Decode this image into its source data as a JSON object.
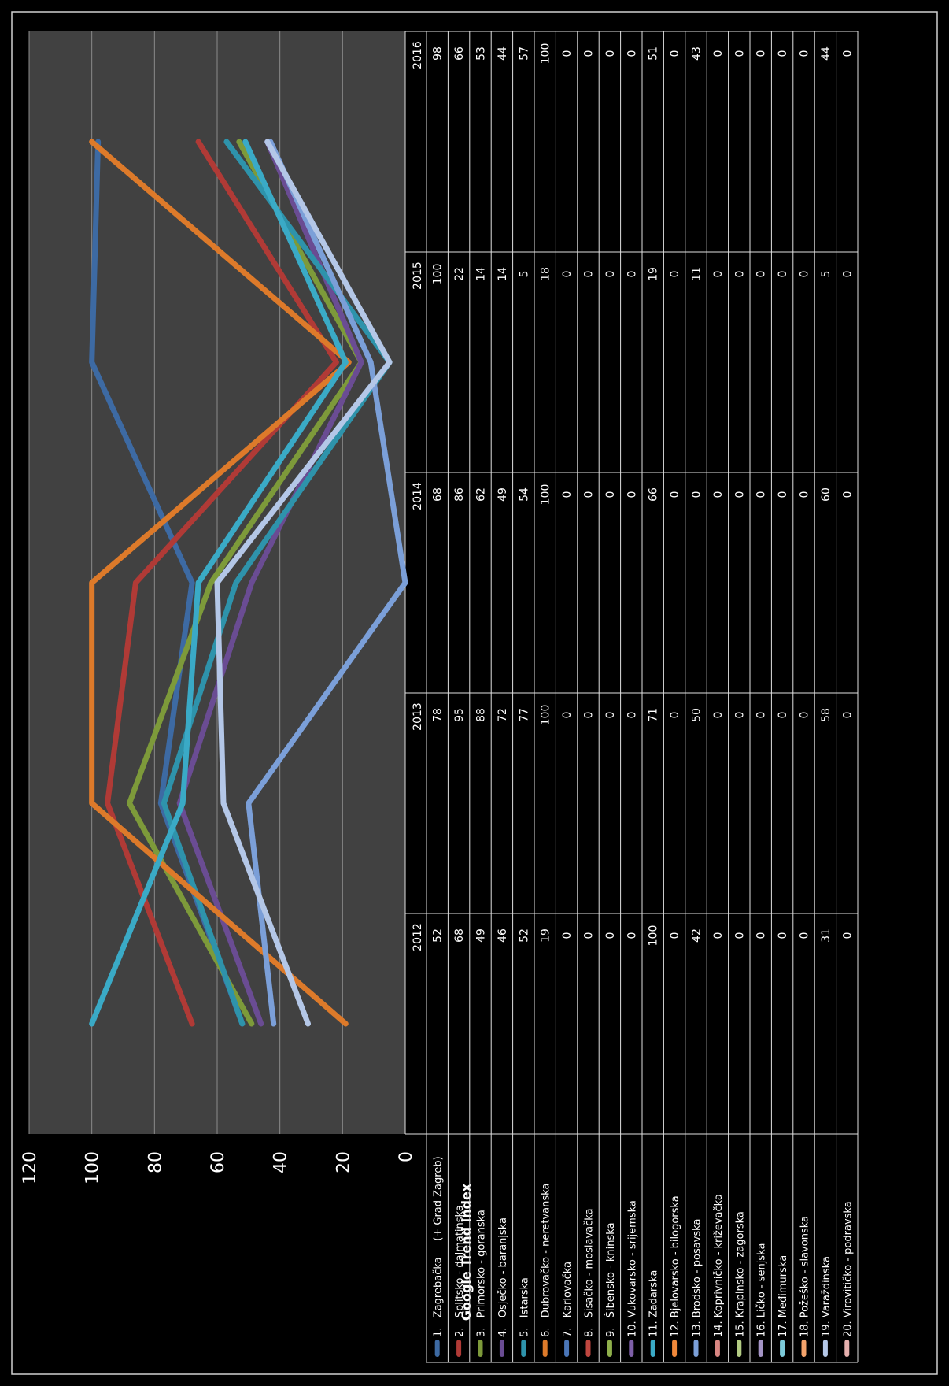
{
  "chart_data": {
    "type": "line",
    "ylabel": "Google Trend index",
    "ylim": [
      0,
      120
    ],
    "yticks": [
      "0",
      "20",
      "40",
      "60",
      "80",
      "100",
      "120"
    ],
    "categories": [
      "2012",
      "2013",
      "2014",
      "2015",
      "2016"
    ],
    "grid": true,
    "legend": "table-left",
    "series": [
      {
        "name": "1.   Zagrebačka     (+ Grad Zagreb)",
        "color": "#3d6aa3",
        "values": [
          52,
          78,
          68,
          100,
          98
        ]
      },
      {
        "name": "2.   Splitsko - dalmatinska",
        "color": "#b03a36",
        "values": [
          68,
          95,
          86,
          22,
          66
        ]
      },
      {
        "name": "3.   Primorsko - goranska",
        "color": "#7d9a3a",
        "values": [
          49,
          88,
          62,
          14,
          53
        ]
      },
      {
        "name": "4.   Osječko - baranjska",
        "color": "#6a4c93",
        "values": [
          46,
          72,
          49,
          14,
          44
        ]
      },
      {
        "name": "5.   Istarska",
        "color": "#2e93ab",
        "values": [
          52,
          77,
          54,
          5,
          57
        ]
      },
      {
        "name": "6.   Dubrovačko - neretvanska",
        "color": "#dd7a2a",
        "values": [
          19,
          100,
          100,
          18,
          100
        ]
      },
      {
        "name": "7.   Karlovačka",
        "color": "#4a76b8",
        "values": [
          0,
          0,
          0,
          0,
          0
        ]
      },
      {
        "name": "8.   Sisačko - moslavačka",
        "color": "#c0463f",
        "values": [
          0,
          0,
          0,
          0,
          0
        ]
      },
      {
        "name": "9.   Šibensko - kninska",
        "color": "#8fb04b",
        "values": [
          0,
          0,
          0,
          0,
          0
        ]
      },
      {
        "name": "10. Vukovarsko - srijemska",
        "color": "#7e5fa8",
        "values": [
          0,
          0,
          0,
          0,
          0
        ]
      },
      {
        "name": "11. Zadarska",
        "color": "#3aaac6",
        "values": [
          100,
          71,
          66,
          19,
          51
        ]
      },
      {
        "name": "12. Bjelovarsko - bilogorska",
        "color": "#f0883a",
        "values": [
          0,
          0,
          0,
          0,
          0
        ]
      },
      {
        "name": "13. Brodsko - posavska",
        "color": "#7b9fd8",
        "values": [
          42,
          50,
          0,
          11,
          43
        ]
      },
      {
        "name": "14. Koprivničko - križevačka",
        "color": "#d98682",
        "values": [
          0,
          0,
          0,
          0,
          0
        ]
      },
      {
        "name": "15. Krapinsko - zagorska",
        "color": "#b3cc83",
        "values": [
          0,
          0,
          0,
          0,
          0
        ]
      },
      {
        "name": "16. Ličko - senjska",
        "color": "#a494c6",
        "values": [
          0,
          0,
          0,
          0,
          0
        ]
      },
      {
        "name": "17. Međimurska",
        "color": "#7ccad9",
        "values": [
          0,
          0,
          0,
          0,
          0
        ]
      },
      {
        "name": "18. Požeško - slavonska",
        "color": "#f5a36b",
        "values": [
          0,
          0,
          0,
          0,
          0
        ]
      },
      {
        "name": "19. Varaždinska",
        "color": "#b4c7e7",
        "values": [
          31,
          58,
          60,
          5,
          44
        ]
      },
      {
        "name": "20. Virovitičko - podravska",
        "color": "#e6b0ae",
        "values": [
          0,
          0,
          0,
          0,
          0
        ]
      }
    ]
  }
}
